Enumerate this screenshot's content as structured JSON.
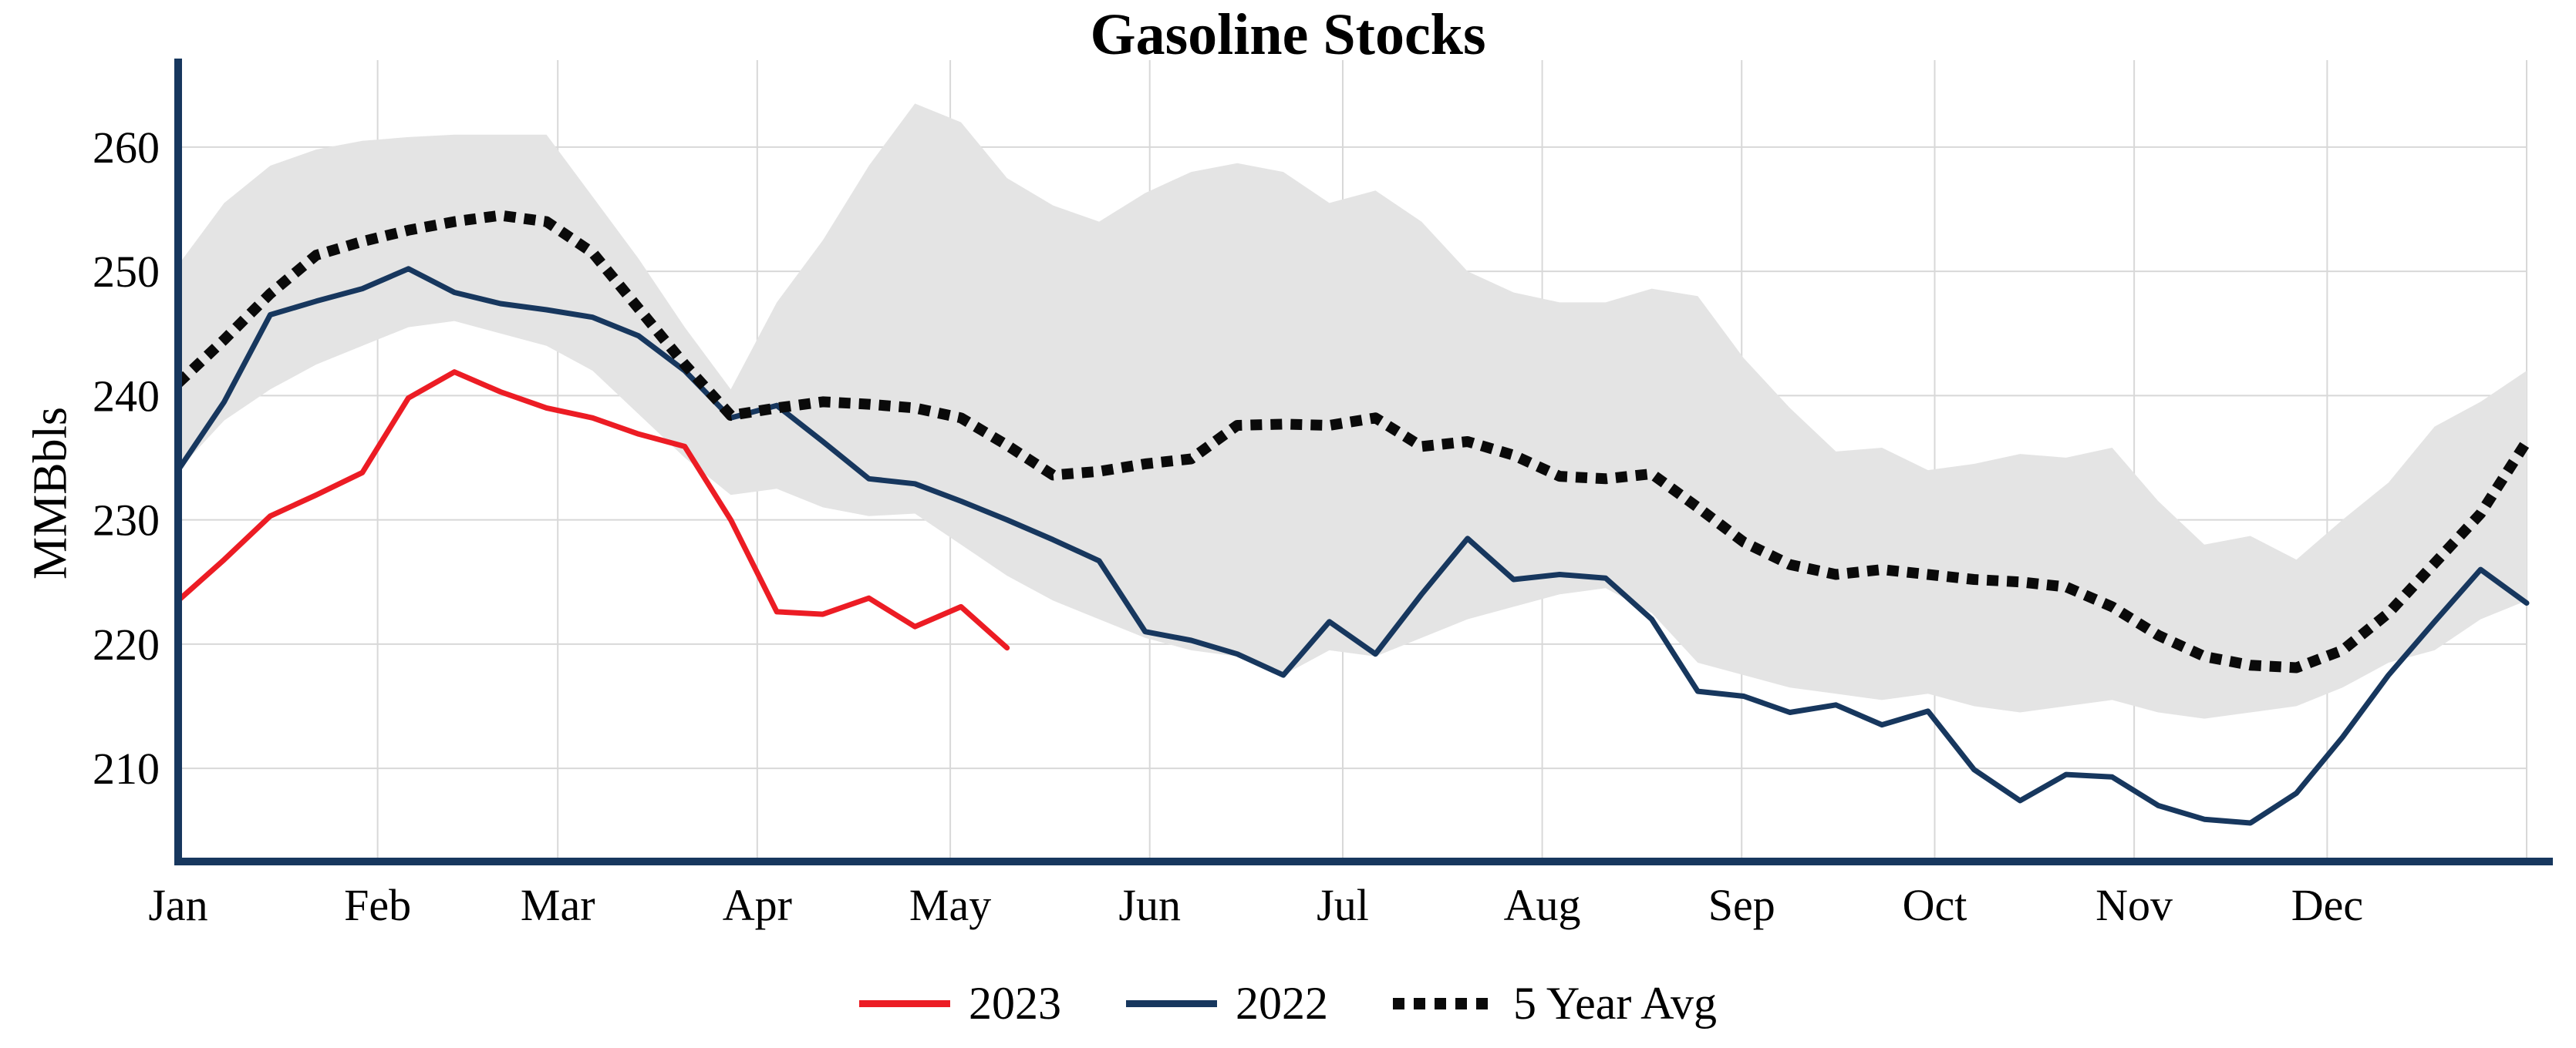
{
  "page": {
    "background": "#ffffff"
  },
  "chart_data": {
    "type": "line",
    "title": "Gasoline Stocks",
    "ylabel": "MMBbls",
    "xlabel": "",
    "x_unit": "weekly, Jan-Dec",
    "x_tick_labels": [
      "Jan",
      "Feb",
      "Mar",
      "Apr",
      "May",
      "Jun",
      "Jul",
      "Aug",
      "Sep",
      "Oct",
      "Nov",
      "Dec"
    ],
    "y_ticks": [
      210,
      220,
      230,
      240,
      250,
      260
    ],
    "ylim": [
      202.5,
      266.5
    ],
    "x_weeks": 52,
    "grid": true,
    "legend_position": "bottom",
    "axis_color": "#17375e",
    "grid_color": "#d8d8d8",
    "text_color": "#000000",
    "band": {
      "name": "5-year range (shaded)",
      "color": "#e4e4e4",
      "upper": [
        250.5,
        255.5,
        258.5,
        259.8,
        260.5,
        260.8,
        261,
        261,
        261,
        256,
        251,
        245.5,
        240.5,
        247.5,
        252.5,
        258.5,
        263.5,
        262,
        257.5,
        255.3,
        254,
        256.3,
        258,
        258.7,
        258,
        255.5,
        256.5,
        254,
        250,
        248.3,
        247.5,
        247.5,
        248.6,
        248,
        243,
        239,
        235.5,
        235.8,
        234,
        234.5,
        235.3,
        235,
        235.8,
        231.5,
        228,
        228.7,
        226.8,
        230,
        233,
        237.5,
        239.5,
        242
      ],
      "lower": [
        234,
        238,
        240.5,
        242.5,
        244,
        245.5,
        246,
        245,
        244,
        242,
        238.5,
        235,
        232,
        232.5,
        231,
        230.3,
        230.5,
        228,
        225.5,
        223.5,
        222,
        220.5,
        219.5,
        219,
        217.5,
        219.5,
        219,
        220.5,
        222,
        223,
        224,
        224.5,
        222.5,
        218.5,
        217.5,
        216.5,
        216,
        215.5,
        216,
        215,
        214.5,
        215,
        215.5,
        214.5,
        214,
        214.5,
        215,
        216.5,
        218.5,
        219.5,
        222,
        223.5
      ]
    },
    "series": [
      {
        "name": "2023",
        "color": "#ec1c24",
        "style": "solid",
        "start_week": 1,
        "values": [
          223.5,
          226.8,
          230.3,
          232,
          233.8,
          239.8,
          241.9,
          240.3,
          239,
          238.2,
          236.9,
          235.9,
          230,
          222.6,
          222.4,
          223.7,
          221.4,
          223,
          219.7
        ]
      },
      {
        "name": "2022",
        "color": "#17375e",
        "style": "solid",
        "start_week": 1,
        "values": [
          234,
          239.5,
          246.5,
          247.6,
          248.6,
          250.2,
          248.3,
          247.4,
          246.9,
          246.3,
          244.8,
          242,
          238.2,
          239.2,
          236.3,
          233.3,
          232.9,
          231.5,
          230,
          228.4,
          226.7,
          221,
          220.3,
          219.2,
          217.5,
          221.8,
          219.2,
          224,
          228.5,
          225.2,
          225.6,
          225.3,
          222,
          216.2,
          215.8,
          214.5,
          215.1,
          213.5,
          214.6,
          209.9,
          207.4,
          209.5,
          209.3,
          207,
          205.9,
          205.6,
          208,
          212.5,
          217.5,
          221.8,
          226,
          223.3
        ]
      },
      {
        "name": "5 Year Avg",
        "color": "#0a0a0a",
        "style": "dotted",
        "start_week": 1,
        "values": [
          241,
          244.5,
          248.2,
          251.3,
          252.4,
          253.3,
          254,
          254.5,
          254,
          251.5,
          247,
          242.5,
          238.4,
          239,
          239.5,
          239.3,
          239,
          238.2,
          236,
          233.6,
          233.9,
          234.5,
          234.9,
          237.6,
          237.7,
          237.6,
          238.2,
          235.9,
          236.3,
          235.2,
          233.5,
          233.3,
          233.7,
          231,
          228.2,
          226.4,
          225.6,
          226,
          225.6,
          225.2,
          225,
          224.6,
          223,
          220.7,
          219,
          218.3,
          218.1,
          219.5,
          222.5,
          226.5,
          230.5,
          236.3
        ]
      }
    ]
  },
  "legend": {
    "items": [
      {
        "label": "2023"
      },
      {
        "label": "2022"
      },
      {
        "label": "5 Year Avg"
      }
    ]
  }
}
